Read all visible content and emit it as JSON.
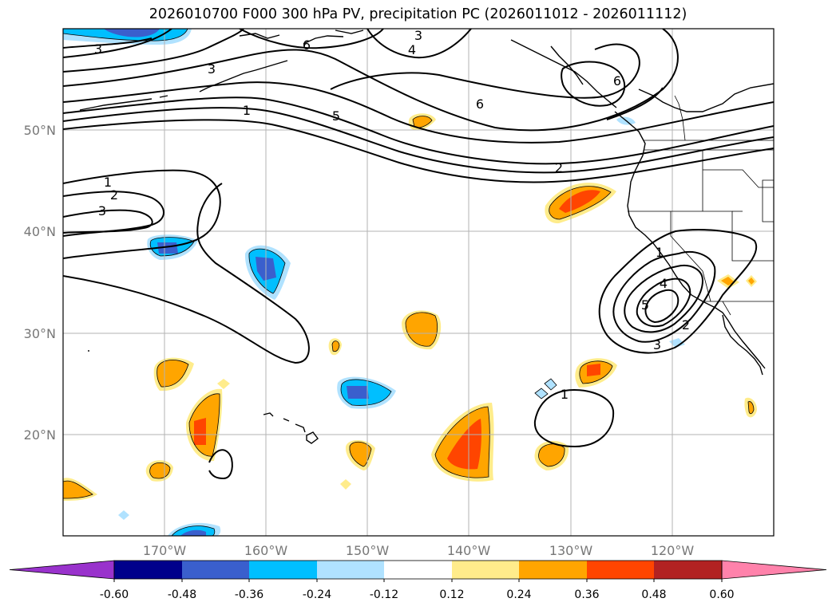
{
  "title": "2026010700 F000 300 hPa PV, precipitation PC (2026011012 - 2026011112)",
  "map": {
    "lon_range": [
      -180,
      -110
    ],
    "lat_range": [
      10,
      60
    ],
    "lat_ticks": [
      {
        "value": 50,
        "label": "50°N"
      },
      {
        "value": 40,
        "label": "40°N"
      },
      {
        "value": 30,
        "label": "30°N"
      },
      {
        "value": 20,
        "label": "20°N"
      }
    ],
    "lon_ticks": [
      {
        "value": -170,
        "label": "170°W"
      },
      {
        "value": -160,
        "label": "160°W"
      },
      {
        "value": -150,
        "label": "150°W"
      },
      {
        "value": -140,
        "label": "140°W"
      },
      {
        "value": -130,
        "label": "130°W"
      },
      {
        "value": -120,
        "label": "120°W"
      }
    ],
    "grid": true,
    "contour_labels": [
      "3",
      "6",
      "3",
      "4",
      "6",
      "6",
      "3",
      "1",
      "5",
      "2",
      "1",
      "2",
      "3",
      "1",
      "4",
      "5",
      "2",
      "3",
      "1"
    ]
  },
  "colorbar": {
    "bounds": [
      "-0.60",
      "-0.48",
      "-0.36",
      "-0.24",
      "-0.12",
      "0.12",
      "0.24",
      "0.36",
      "0.48",
      "0.60"
    ],
    "colors": [
      "#9932cc",
      "#00008b",
      "#3a5fcd",
      "#00bfff",
      "#b0e2ff",
      "#ffffff",
      "#ffec8b",
      "#ffa500",
      "#ff4500",
      "#b22222",
      "#ff82ab"
    ],
    "extend": "both"
  }
}
